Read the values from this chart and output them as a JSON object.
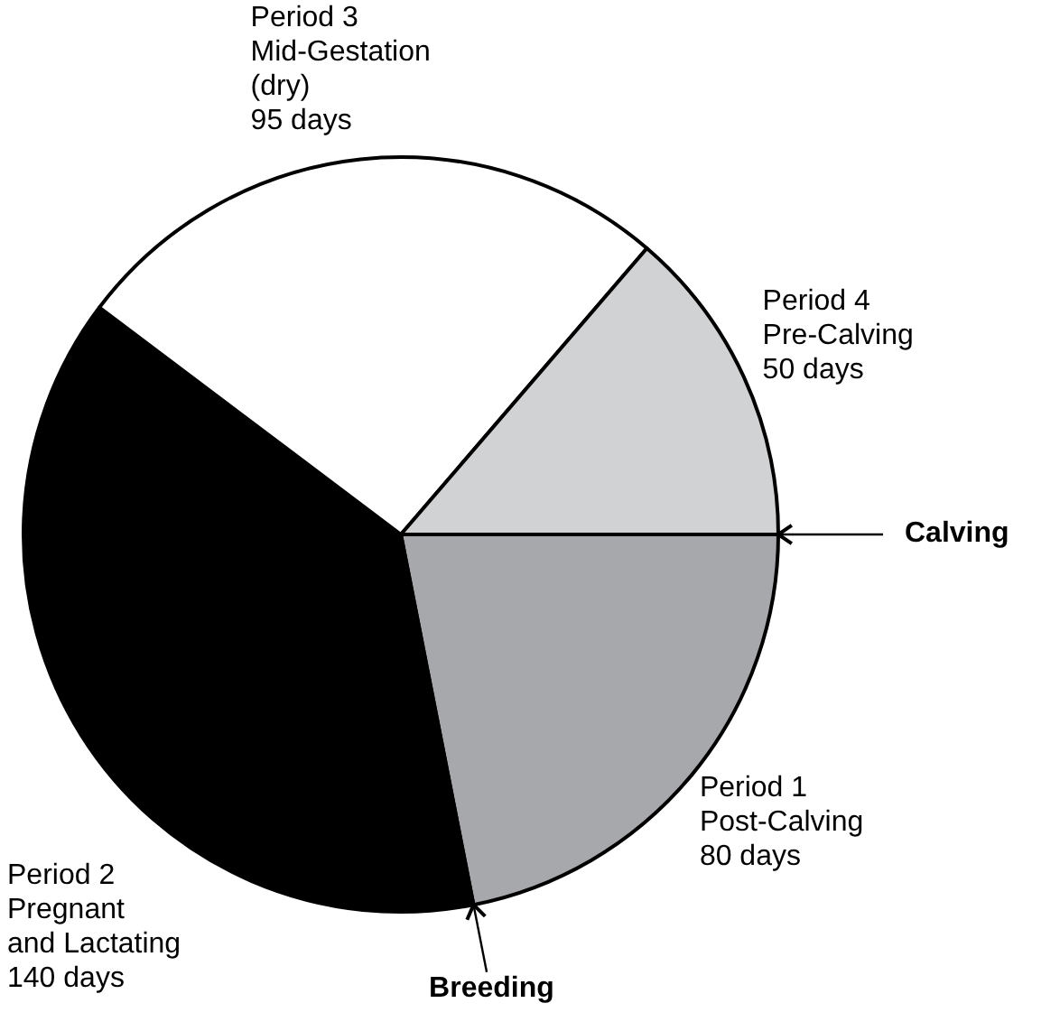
{
  "chart_data": {
    "type": "pie",
    "categories": [
      "Period 1\nPost-Calving",
      "Period 2\nPregnant\nand Lactating",
      "Period 3\nMid-Gestation\n(dry)",
      "Period 4\nPre-Calving"
    ],
    "values": [
      80,
      140,
      95,
      50
    ],
    "value_labels": [
      "80 days",
      "140 days",
      "95 days",
      "50 days"
    ],
    "colors": [
      "#a7a8ab",
      "#000000",
      "#ffffff",
      "#d1d2d4"
    ],
    "annotations": [
      "Calving",
      "Breeding"
    ]
  }
}
